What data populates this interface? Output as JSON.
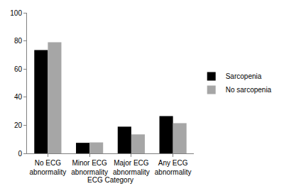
{
  "chart_data": {
    "type": "bar",
    "x_label": "ECG Category",
    "categories": [
      "No ECG abnormality",
      "Minor ECG abnormality",
      "Major ECG abnormality",
      "Any ECG abnormality"
    ],
    "series": [
      {
        "name": "Sarcopenia",
        "color": "#000000",
        "values": [
          73.5,
          7.5,
          19,
          26.5
        ]
      },
      {
        "name": "No sarcopenia",
        "color": "#a6a6a6",
        "values": [
          79,
          7.8,
          13.5,
          21.5
        ]
      }
    ],
    "ylim": [
      0,
      100
    ],
    "yticks": [
      0,
      20,
      40,
      60,
      80,
      100
    ],
    "grid": false,
    "legend": "right"
  }
}
